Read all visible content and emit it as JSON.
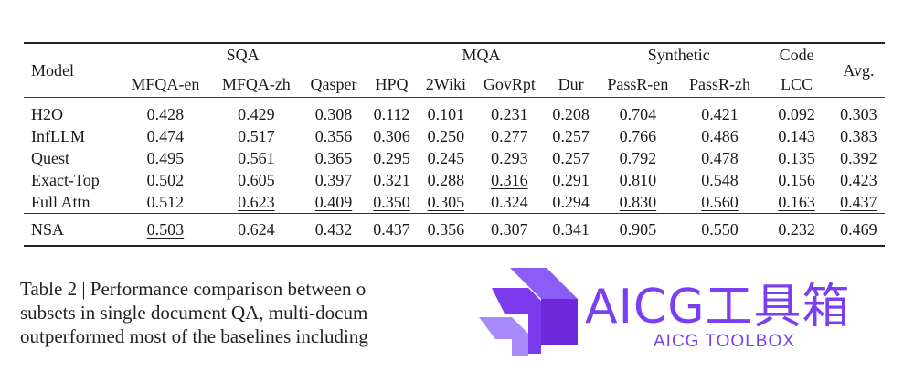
{
  "table": {
    "model_header": "Model",
    "groups": [
      "SQA",
      "MQA",
      "Synthetic",
      "Code"
    ],
    "avg_header": "Avg.",
    "subheaders": [
      "MFQA-en",
      "MFQA-zh",
      "Qasper",
      "HPQ",
      "2Wiki",
      "GovRpt",
      "Dur",
      "PassR-en",
      "PassR-zh",
      "LCC"
    ],
    "rows": [
      {
        "model": "H2O",
        "cells": [
          "0.428",
          "0.429",
          "0.308",
          "0.112",
          "0.101",
          "0.231",
          "0.208",
          "0.704",
          "0.421",
          "0.092",
          "0.303"
        ]
      },
      {
        "model": "InfLLM",
        "cells": [
          "0.474",
          "0.517",
          "0.356",
          "0.306",
          "0.250",
          "0.277",
          "0.257",
          "0.766",
          "0.486",
          "0.143",
          "0.383"
        ]
      },
      {
        "model": "Quest",
        "cells": [
          "0.495",
          "0.561",
          "0.365",
          "0.295",
          "0.245",
          "0.293",
          "0.257",
          "0.792",
          "0.478",
          "0.135",
          "0.392"
        ]
      },
      {
        "model": "Exact-Top",
        "cells": [
          "0.502",
          "0.605",
          "0.397",
          "0.321",
          "0.288",
          "0.316",
          "0.291",
          "0.810",
          "0.548",
          "0.156",
          "0.423"
        ]
      },
      {
        "model": "Full Attn",
        "cells": [
          "0.512",
          "0.623",
          "0.409",
          "0.350",
          "0.305",
          "0.324",
          "0.294",
          "0.830",
          "0.560",
          "0.163",
          "0.437"
        ]
      },
      {
        "model": "NSA",
        "cells": [
          "0.503",
          "0.624",
          "0.432",
          "0.437",
          "0.356",
          "0.307",
          "0.341",
          "0.905",
          "0.550",
          "0.232",
          "0.469"
        ]
      }
    ]
  },
  "caption": {
    "line1": "Table 2 | Performance comparison between o",
    "line2": "subsets in single document QA, multi-docum",
    "line3": "outperformed most of the baselines including"
  },
  "watermark": {
    "title": "AICG工具箱",
    "subtitle": "AICG TOOLBOX",
    "color": "#7a3ff2",
    "icon": "cube-logo-icon"
  }
}
